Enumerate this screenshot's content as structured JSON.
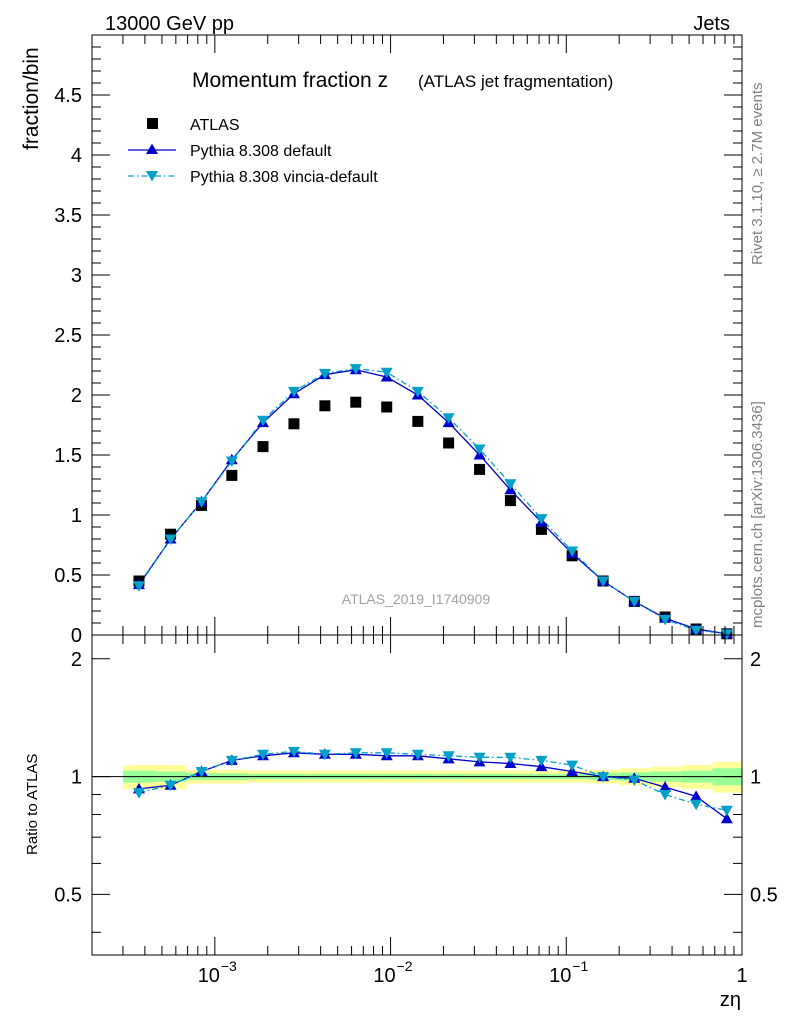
{
  "header": {
    "left_label": "13000 GeV pp",
    "right_label": "Jets"
  },
  "side_labels": {
    "rivet": "Rivet 3.1.10, ≥ 2.7M events",
    "mcplots": "mcplots.cern.ch [arXiv:1306.3436]"
  },
  "chart_data": [
    {
      "type": "scatter",
      "panel": "main",
      "title": "Momentum fraction z",
      "subtitle": "(ATLAS jet fragmentation)",
      "ylabel": "fraction/bin",
      "xlabel": "zη",
      "watermark": "ATLAS_2019_I1740909",
      "xscale": "log",
      "xlim": [
        0.0002,
        1.0
      ],
      "ylim": [
        0,
        5.0
      ],
      "yticks": [
        0,
        0.5,
        1,
        1.5,
        2,
        2.5,
        3,
        3.5,
        4,
        4.5
      ],
      "ytick_labels": [
        "0",
        "0.5",
        "1",
        "1.5",
        "2",
        "2.5",
        "3",
        "3.5",
        "4",
        "4.5"
      ],
      "legend_position": "top-left",
      "series": [
        {
          "name": "ATLAS",
          "style": "data-squares",
          "color": "#000000",
          "x": [
            0.00037,
            0.00056,
            0.00084,
            0.00125,
            0.00188,
            0.00282,
            0.00423,
            0.00634,
            0.00951,
            0.0143,
            0.0214,
            0.0321,
            0.0481,
            0.0722,
            0.108,
            0.162,
            0.244,
            0.365,
            0.548,
            0.82
          ],
          "y": [
            0.45,
            0.84,
            1.08,
            1.33,
            1.57,
            1.76,
            1.91,
            1.94,
            1.9,
            1.78,
            1.6,
            1.38,
            1.12,
            0.88,
            0.66,
            0.45,
            0.28,
            0.15,
            0.05,
            0.01
          ]
        },
        {
          "name": "Pythia 8.308 default",
          "style": "solid-triangle-up",
          "color": "#0000cc",
          "x": [
            0.00037,
            0.00056,
            0.00084,
            0.00125,
            0.00188,
            0.00282,
            0.00423,
            0.00634,
            0.00951,
            0.0143,
            0.0214,
            0.0321,
            0.0481,
            0.0722,
            0.108,
            0.162,
            0.244,
            0.365,
            0.548,
            0.82
          ],
          "y": [
            0.42,
            0.8,
            1.11,
            1.46,
            1.77,
            2.01,
            2.17,
            2.21,
            2.15,
            2.0,
            1.77,
            1.5,
            1.21,
            0.94,
            0.68,
            0.45,
            0.28,
            0.14,
            0.05,
            0.01
          ]
        },
        {
          "name": "Pythia 8.308 vincia-default",
          "style": "dashdot-triangle-down",
          "color": "#00a0c8",
          "x": [
            0.00037,
            0.00056,
            0.00084,
            0.00125,
            0.00188,
            0.00282,
            0.00423,
            0.00634,
            0.00951,
            0.0143,
            0.0214,
            0.0321,
            0.0481,
            0.0722,
            0.108,
            0.162,
            0.244,
            0.365,
            0.548,
            0.82
          ],
          "y": [
            0.41,
            0.8,
            1.11,
            1.45,
            1.79,
            2.03,
            2.18,
            2.22,
            2.19,
            2.03,
            1.81,
            1.55,
            1.26,
            0.97,
            0.7,
            0.45,
            0.28,
            0.13,
            0.04,
            0.01
          ]
        }
      ]
    },
    {
      "type": "scatter",
      "panel": "ratio",
      "ylabel": "Ratio to ATLAS",
      "xscale": "log",
      "xlim": [
        0.0002,
        1.0
      ],
      "ylim": [
        0.35,
        2.3
      ],
      "yscale": "log",
      "yticks": [
        0.5,
        1,
        2
      ],
      "ytick_labels": [
        "0.5",
        "1",
        "2"
      ],
      "xticks": [
        0.001,
        0.01,
        0.1,
        1
      ],
      "xtick_labels": [
        "10",
        "10",
        "10",
        "1"
      ],
      "xtick_exponents": [
        "−3",
        "−2",
        "−1",
        ""
      ],
      "bands": {
        "x_edges": [
          0.0003,
          0.00046,
          0.00069,
          0.00103,
          0.00155,
          0.00232,
          0.00349,
          0.00523,
          0.00785,
          0.0118,
          0.0177,
          0.0265,
          0.0398,
          0.0597,
          0.0895,
          0.134,
          0.202,
          0.302,
          0.454,
          0.68,
          1.0
        ],
        "stat_sys_half_width": [
          0.07,
          0.07,
          0.04,
          0.04,
          0.035,
          0.035,
          0.035,
          0.035,
          0.035,
          0.035,
          0.035,
          0.035,
          0.035,
          0.035,
          0.035,
          0.04,
          0.05,
          0.06,
          0.07,
          0.09
        ],
        "stat_half_width": [
          0.035,
          0.03,
          0.02,
          0.02,
          0.015,
          0.015,
          0.015,
          0.015,
          0.015,
          0.015,
          0.015,
          0.015,
          0.015,
          0.015,
          0.015,
          0.02,
          0.025,
          0.03,
          0.035,
          0.05
        ],
        "outer_color": "#ffff99",
        "inner_color": "#99ff99"
      },
      "series": [
        {
          "name": "Pythia 8.308 default",
          "style": "solid-triangle-up",
          "color": "#0000cc",
          "x": [
            0.00037,
            0.00056,
            0.00084,
            0.00125,
            0.00188,
            0.00282,
            0.00423,
            0.00634,
            0.00951,
            0.0143,
            0.0214,
            0.0321,
            0.0481,
            0.0722,
            0.108,
            0.162,
            0.244,
            0.365,
            0.548,
            0.82
          ],
          "y": [
            0.93,
            0.95,
            1.03,
            1.1,
            1.13,
            1.15,
            1.14,
            1.14,
            1.13,
            1.13,
            1.11,
            1.09,
            1.08,
            1.06,
            1.03,
            1.0,
            0.99,
            0.94,
            0.89,
            0.78
          ]
        },
        {
          "name": "Pythia 8.308 vincia-default",
          "style": "dashdot-triangle-down",
          "color": "#00a0c8",
          "x": [
            0.00037,
            0.00056,
            0.00084,
            0.00125,
            0.00188,
            0.00282,
            0.00423,
            0.00634,
            0.00951,
            0.0143,
            0.0214,
            0.0321,
            0.0481,
            0.0722,
            0.108,
            0.162,
            0.244,
            0.365,
            0.548,
            0.82
          ],
          "y": [
            0.91,
            0.95,
            1.03,
            1.1,
            1.14,
            1.16,
            1.14,
            1.15,
            1.15,
            1.14,
            1.13,
            1.12,
            1.12,
            1.1,
            1.07,
            1.0,
            0.98,
            0.9,
            0.85,
            0.82
          ]
        }
      ]
    }
  ]
}
